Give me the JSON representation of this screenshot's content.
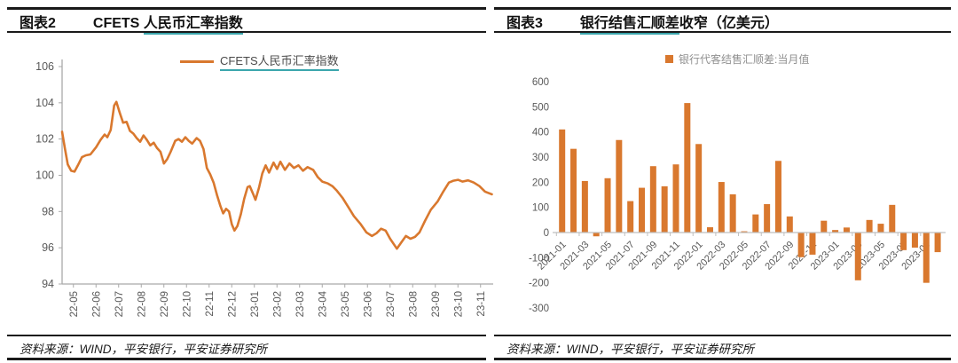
{
  "panels": [
    {
      "header": {
        "tag": "图表2",
        "title_plain": "CFETS ",
        "title_underlined": "人民币汇率指数",
        "title_suffix": ""
      },
      "legend": {
        "label": "CFETS人民币汇率指数"
      },
      "source": "资料来源：WIND，平安银行，平安证券研究所"
    },
    {
      "header": {
        "tag": "图表3",
        "title_plain": "",
        "title_underlined": "银行结售汇顺差",
        "title_suffix": "收窄（亿美元）"
      },
      "legend": {
        "label": "银行代客结售汇顺差:当月值"
      },
      "source": "资料来源：WIND，平安银行，平安证券研究所"
    }
  ],
  "colors": {
    "accent_orange": "#D9782E",
    "teal_underline": "#3BA6AD",
    "axis_text": "#595959",
    "axis_line": "#A9A9A9",
    "zero_line": "#BFBFBF"
  },
  "chart_data": [
    {
      "type": "line",
      "title": "CFETS 人民币汇率指数",
      "legend": [
        "CFETS人民币汇率指数"
      ],
      "legend_position": "top-center",
      "grid": false,
      "ylim": [
        94,
        106
      ],
      "y_ticks": [
        106,
        104,
        102,
        100,
        98,
        96,
        94
      ],
      "x_tick_labels": [
        "22-05",
        "22-06",
        "22-07",
        "22-08",
        "22-09",
        "22-10",
        "22-11",
        "22-12",
        "23-01",
        "23-02",
        "23-03",
        "23-04",
        "23-05",
        "23-06",
        "23-07",
        "23-08",
        "23-09",
        "23-10",
        "23-11"
      ],
      "x_unit": "months relative to 22-05 tick",
      "series": [
        {
          "name": "CFETS人民币汇率指数",
          "points": [
            [
              -0.5,
              102.4
            ],
            [
              -0.38,
              101.5
            ],
            [
              -0.25,
              100.6
            ],
            [
              -0.1,
              100.25
            ],
            [
              0.05,
              100.2
            ],
            [
              0.2,
              100.55
            ],
            [
              0.38,
              101.0
            ],
            [
              0.55,
              101.1
            ],
            [
              0.75,
              101.15
            ],
            [
              1.0,
              101.55
            ],
            [
              1.2,
              101.95
            ],
            [
              1.38,
              102.25
            ],
            [
              1.5,
              102.1
            ],
            [
              1.65,
              102.5
            ],
            [
              1.8,
              103.85
            ],
            [
              1.9,
              104.05
            ],
            [
              2.05,
              103.45
            ],
            [
              2.2,
              102.9
            ],
            [
              2.35,
              102.95
            ],
            [
              2.5,
              102.45
            ],
            [
              2.65,
              102.3
            ],
            [
              2.8,
              102.05
            ],
            [
              2.95,
              101.85
            ],
            [
              3.1,
              102.2
            ],
            [
              3.25,
              101.95
            ],
            [
              3.4,
              101.65
            ],
            [
              3.55,
              101.8
            ],
            [
              3.7,
              101.5
            ],
            [
              3.85,
              101.3
            ],
            [
              4.0,
              100.65
            ],
            [
              4.15,
              100.9
            ],
            [
              4.3,
              101.3
            ],
            [
              4.5,
              101.9
            ],
            [
              4.65,
              102.0
            ],
            [
              4.8,
              101.85
            ],
            [
              4.95,
              102.1
            ],
            [
              5.1,
              101.9
            ],
            [
              5.25,
              101.75
            ],
            [
              5.45,
              102.05
            ],
            [
              5.6,
              101.9
            ],
            [
              5.75,
              101.45
            ],
            [
              5.9,
              100.4
            ],
            [
              6.05,
              100.05
            ],
            [
              6.2,
              99.6
            ],
            [
              6.35,
              98.9
            ],
            [
              6.5,
              98.3
            ],
            [
              6.62,
              97.9
            ],
            [
              6.75,
              98.15
            ],
            [
              6.88,
              98.0
            ],
            [
              7.0,
              97.3
            ],
            [
              7.12,
              96.95
            ],
            [
              7.25,
              97.2
            ],
            [
              7.4,
              97.85
            ],
            [
              7.55,
              98.7
            ],
            [
              7.7,
              99.35
            ],
            [
              7.8,
              99.4
            ],
            [
              7.95,
              98.95
            ],
            [
              8.05,
              98.65
            ],
            [
              8.2,
              99.3
            ],
            [
              8.35,
              100.1
            ],
            [
              8.5,
              100.55
            ],
            [
              8.65,
              100.15
            ],
            [
              8.85,
              100.7
            ],
            [
              9.0,
              100.35
            ],
            [
              9.15,
              100.75
            ],
            [
              9.35,
              100.3
            ],
            [
              9.55,
              100.65
            ],
            [
              9.75,
              100.4
            ],
            [
              9.95,
              100.55
            ],
            [
              10.15,
              100.25
            ],
            [
              10.35,
              100.45
            ],
            [
              10.6,
              100.3
            ],
            [
              10.8,
              99.9
            ],
            [
              11.0,
              99.65
            ],
            [
              11.25,
              99.55
            ],
            [
              11.45,
              99.4
            ],
            [
              11.65,
              99.15
            ],
            [
              11.9,
              98.75
            ],
            [
              12.15,
              98.25
            ],
            [
              12.4,
              97.75
            ],
            [
              12.7,
              97.3
            ],
            [
              12.95,
              96.85
            ],
            [
              13.2,
              96.65
            ],
            [
              13.4,
              96.8
            ],
            [
              13.6,
              97.05
            ],
            [
              13.8,
              96.95
            ],
            [
              14.0,
              96.5
            ],
            [
              14.3,
              95.95
            ],
            [
              14.5,
              96.3
            ],
            [
              14.7,
              96.65
            ],
            [
              14.9,
              96.5
            ],
            [
              15.1,
              96.6
            ],
            [
              15.3,
              96.85
            ],
            [
              15.55,
              97.5
            ],
            [
              15.8,
              98.1
            ],
            [
              16.1,
              98.55
            ],
            [
              16.35,
              99.1
            ],
            [
              16.6,
              99.6
            ],
            [
              16.8,
              99.7
            ],
            [
              17.0,
              99.75
            ],
            [
              17.2,
              99.65
            ],
            [
              17.45,
              99.72
            ],
            [
              17.7,
              99.6
            ],
            [
              17.95,
              99.4
            ],
            [
              18.2,
              99.1
            ],
            [
              18.5,
              98.95
            ]
          ]
        }
      ]
    },
    {
      "type": "bar",
      "title": "银行结售汇顺差收窄（亿美元）",
      "legend": [
        "银行代客结售汇顺差:当月值"
      ],
      "legend_position": "top-center",
      "grid": false,
      "ylim": [
        -300,
        600
      ],
      "y_ticks": [
        600,
        500,
        400,
        300,
        200,
        100,
        0,
        -100,
        -200,
        -300
      ],
      "categories": [
        "2021-01",
        "2021-02",
        "2021-03",
        "2021-04",
        "2021-05",
        "2021-06",
        "2021-07",
        "2021-08",
        "2021-09",
        "2021-10",
        "2021-11",
        "2021-12",
        "2022-01",
        "2022-02",
        "2022-03",
        "2022-04",
        "2022-05",
        "2022-06",
        "2022-07",
        "2022-08",
        "2022-09",
        "2022-10",
        "2022-11",
        "2022-12",
        "2023-01",
        "2023-02",
        "2023-03",
        "2023-04",
        "2023-05",
        "2023-06",
        "2023-07",
        "2023-08",
        "2023-09",
        "2023-10"
      ],
      "values": [
        410,
        333,
        205,
        -15,
        216,
        368,
        125,
        178,
        264,
        184,
        271,
        515,
        352,
        21,
        201,
        152,
        5,
        72,
        113,
        285,
        64,
        -98,
        -88,
        47,
        10,
        20,
        -190,
        50,
        35,
        110,
        -70,
        -60,
        -200,
        -78
      ],
      "x_tick_labels": [
        "2021-01",
        "2021-03",
        "2021-05",
        "2021-07",
        "2021-09",
        "2021-11",
        "2022-01",
        "2022-03",
        "2022-05",
        "2022-07",
        "2022-09",
        "2022-11",
        "2023-01",
        "2023-03",
        "2023-05",
        "2023-07",
        "2023-09"
      ],
      "x_tick_every": 2
    }
  ]
}
